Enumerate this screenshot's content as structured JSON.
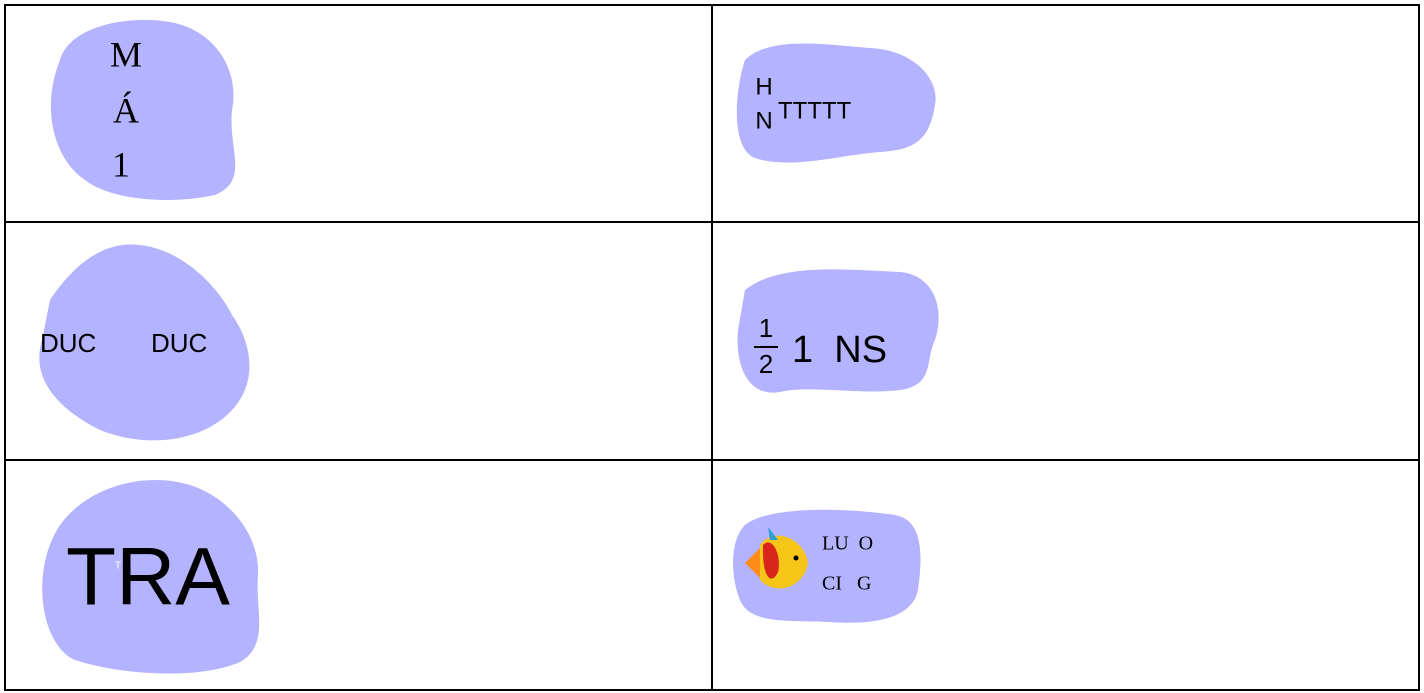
{
  "table": {
    "rows": [
      [
        {
          "lines": [
            "M",
            "Á",
            "1"
          ]
        },
        {
          "stack": [
            "H",
            "N"
          ],
          "text": "TTTTT"
        }
      ],
      [
        {
          "words": [
            "DUC",
            "DUC"
          ]
        },
        {
          "numerator": "1",
          "denominator": "2",
          "text": "1  NS"
        }
      ],
      [
        {
          "text": "TRA",
          "mark": "T"
        },
        {
          "lines": [
            "LU  O",
            "CI   G"
          ]
        }
      ]
    ]
  }
}
